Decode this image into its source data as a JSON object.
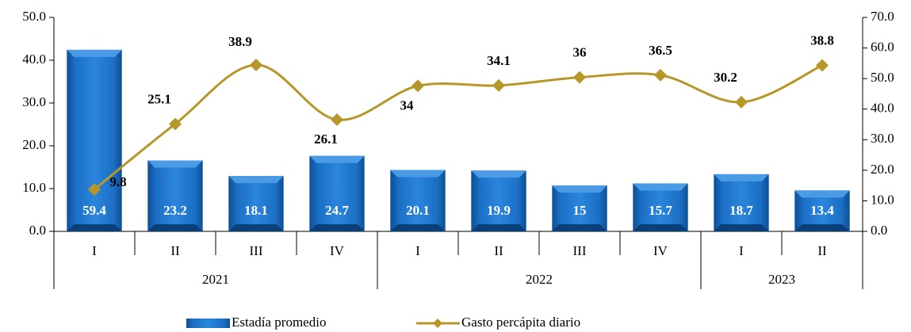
{
  "chart_data": {
    "type": "bar_line",
    "categories": [
      "I",
      "II",
      "III",
      "IV",
      "I",
      "II",
      "III",
      "IV",
      "I",
      "II"
    ],
    "groups": [
      {
        "label": "2021",
        "span": 4
      },
      {
        "label": "2022",
        "span": 4
      },
      {
        "label": "2023",
        "span": 2
      }
    ],
    "series": [
      {
        "name": "Estadía promedio",
        "type": "bar",
        "axis": "y2",
        "color": "#1b6fc4",
        "values": [
          59.4,
          23.2,
          18.1,
          24.7,
          20.1,
          19.9,
          15.0,
          15.7,
          18.7,
          13.4
        ]
      },
      {
        "name": "Gasto percápita diario",
        "type": "line",
        "axis": "y",
        "color": "#b8972a",
        "values": [
          9.8,
          25.1,
          38.9,
          26.1,
          34.0,
          34.1,
          36.0,
          36.5,
          30.2,
          38.8
        ]
      }
    ],
    "ylim": [
      0,
      50
    ],
    "yticks": [
      {
        "value": 0,
        "label": "0.0"
      },
      {
        "value": 10,
        "label": "10.0"
      },
      {
        "value": 20,
        "label": "20.0"
      },
      {
        "value": 30,
        "label": "30.0"
      },
      {
        "value": 40,
        "label": "40.0"
      },
      {
        "value": 50,
        "label": "50.0"
      }
    ],
    "y2lim": [
      0,
      70
    ],
    "y2ticks": [
      {
        "value": 0,
        "label": "0.0"
      },
      {
        "value": 10,
        "label": "10.0"
      },
      {
        "value": 20,
        "label": "20.0"
      },
      {
        "value": 30,
        "label": "30.0"
      },
      {
        "value": 40,
        "label": "40.0"
      },
      {
        "value": 50,
        "label": "50.0"
      },
      {
        "value": 60,
        "label": "60.0"
      },
      {
        "value": 70,
        "label": "70.0"
      }
    ],
    "legend": "bottom"
  }
}
